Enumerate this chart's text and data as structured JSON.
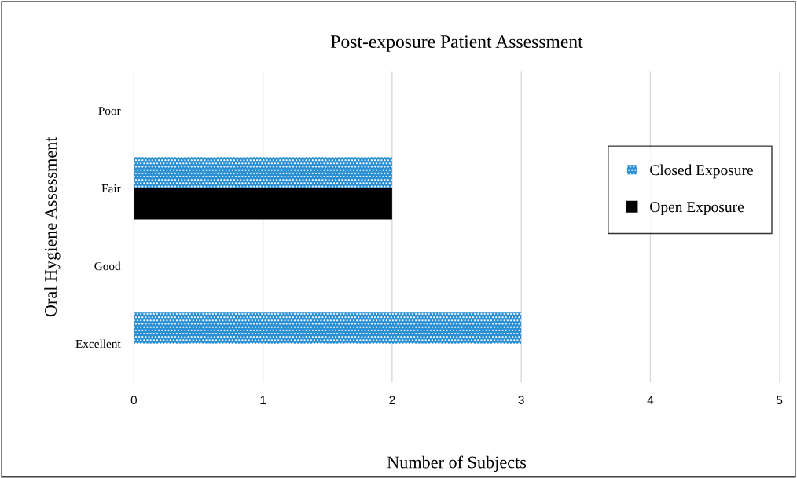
{
  "chart_data": {
    "type": "bar",
    "orientation": "horizontal",
    "title": "Post-exposure Patient Assessment",
    "xlabel": "Number of Subjects",
    "ylabel": "Oral Hygiene Assessment",
    "categories": [
      "Poor",
      "Fair",
      "Good",
      "Excellent"
    ],
    "series": [
      {
        "name": "Closed Exposure",
        "color": "#2b8fd3",
        "values": [
          0,
          2,
          0,
          3
        ]
      },
      {
        "name": "Open Exposure",
        "color": "#000000",
        "values": [
          0,
          2,
          0,
          0
        ]
      }
    ],
    "xlim": [
      0,
      5
    ],
    "xticks": [
      0,
      1,
      2,
      3,
      4,
      5
    ],
    "grid": "x",
    "legend": "right"
  }
}
